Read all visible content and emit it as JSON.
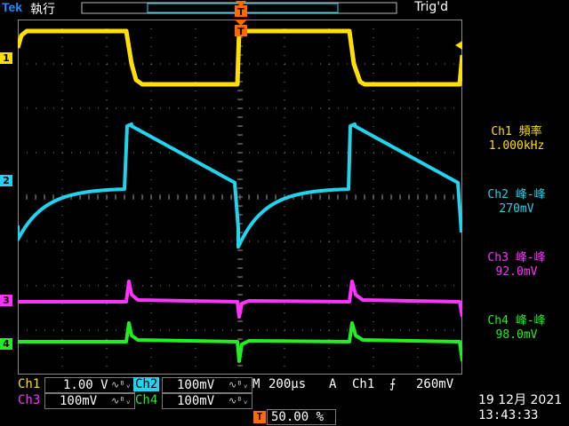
{
  "header": {
    "brand": "Tek",
    "run_state": "執行",
    "trigger_status": "Trig'd"
  },
  "channel_markers": [
    {
      "label": "1",
      "color": "#ffe000"
    },
    {
      "label": "2",
      "color": "#22d3ee"
    },
    {
      "label": "3",
      "color": "#ff33ff"
    },
    {
      "label": "4",
      "color": "#22ee22"
    }
  ],
  "trigger_marker": "T",
  "measurements": [
    {
      "label": "Ch1 頻率",
      "value": "1.000kHz",
      "color": "#ffe000"
    },
    {
      "label": "Ch2 峰-峰",
      "value": "270mV",
      "color": "#22d3ee"
    },
    {
      "label": "Ch3 峰-峰",
      "value": "92.0mV",
      "color": "#ff33ff"
    },
    {
      "label": "Ch4 峰-峰",
      "value": "98.0mV",
      "color": "#22ee22"
    }
  ],
  "bottom": {
    "ch1_label": "Ch1",
    "ch1_scale": "1.00 V",
    "ch2_label": "Ch2",
    "ch2_scale": "100mV",
    "ch3_label": "Ch3",
    "ch3_scale": "100mV",
    "ch4_label": "Ch4",
    "ch4_scale": "100mV",
    "bw_symbol": "∿ᴮᵥ",
    "timebase_prefix": "M",
    "timebase": "200µs",
    "trigger_mode": "A",
    "trigger_source": "Ch1",
    "trigger_slope": "⨍",
    "trigger_level": "260mV",
    "trigger_position_icon": "T",
    "trigger_position": "50.00 %",
    "date": "19 12月 2021",
    "time": "13:43:33"
  },
  "colors": {
    "ch1": "#ffe000",
    "ch2": "#22d3ee",
    "ch3": "#ff33ff",
    "ch4": "#22ee22",
    "trigger": "#ff6a00",
    "grid": "#8a8a8a"
  }
}
